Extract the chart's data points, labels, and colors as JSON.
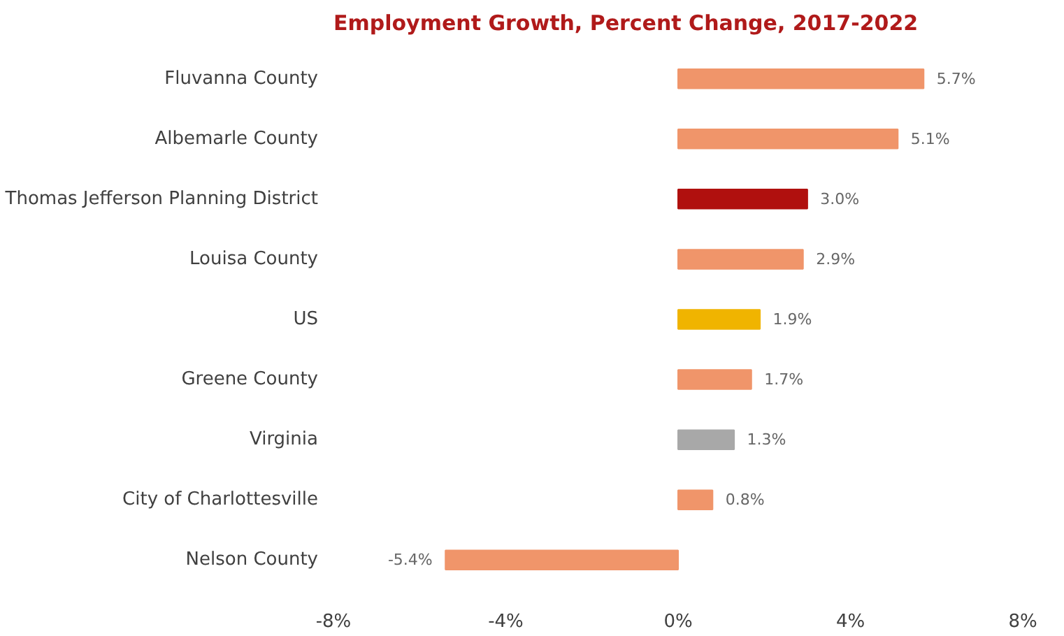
{
  "chart_data": {
    "type": "bar",
    "orientation": "horizontal",
    "title": "Employment Growth, Percent Change, 2017-2022",
    "categories": [
      "Fluvanna County",
      "Albemarle County",
      "Thomas Jefferson Planning District",
      "Louisa County",
      "US",
      "Greene County",
      "Virginia",
      "City of Charlottesville",
      "Nelson County"
    ],
    "values": [
      5.7,
      5.1,
      3.0,
      2.9,
      1.9,
      1.7,
      1.3,
      0.8,
      -5.4
    ],
    "colors": [
      "#f0956a",
      "#f0956a",
      "#b0100e",
      "#f0956a",
      "#f0b400",
      "#f0956a",
      "#a8a8a8",
      "#f0956a",
      "#f0956a"
    ],
    "value_labels": [
      "5.7%",
      "5.1%",
      "3.0%",
      "2.9%",
      "1.9%",
      "1.7%",
      "1.3%",
      "0.8%",
      "-5.4%"
    ],
    "xlim": [
      -8,
      8
    ],
    "xticks": [
      {
        "value": -8,
        "label": "-8%"
      },
      {
        "value": -4,
        "label": "-4%"
      },
      {
        "value": 0,
        "label": "0%"
      },
      {
        "value": 4,
        "label": "4%"
      },
      {
        "value": 8,
        "label": "8%"
      }
    ],
    "grid": false
  }
}
